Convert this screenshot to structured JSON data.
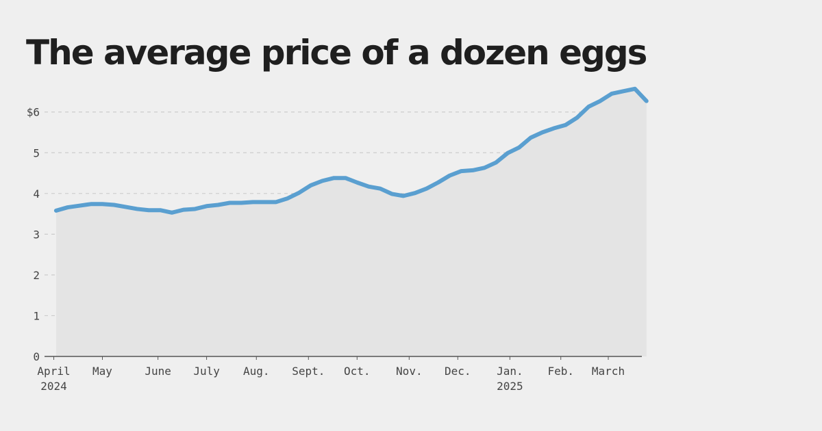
{
  "chart_data": {
    "type": "area",
    "title": "The average price of a dozen eggs",
    "xlabel": "",
    "ylabel": "",
    "ylim": [
      0,
      6.6
    ],
    "yticks": [
      0,
      1,
      2,
      3,
      4,
      5,
      6
    ],
    "ytick_labels": [
      "0",
      "1",
      "2",
      "3",
      "4",
      "5",
      "$6"
    ],
    "xlim": [
      0,
      51.6
    ],
    "xticks": [
      {
        "x": 0.8,
        "line1": "April",
        "line2": "2024"
      },
      {
        "x": 5.0,
        "line1": "May",
        "line2": ""
      },
      {
        "x": 9.8,
        "line1": "June",
        "line2": ""
      },
      {
        "x": 14.0,
        "line1": "July",
        "line2": ""
      },
      {
        "x": 18.3,
        "line1": "Aug.",
        "line2": ""
      },
      {
        "x": 22.8,
        "line1": "Sept.",
        "line2": ""
      },
      {
        "x": 27.0,
        "line1": "Oct.",
        "line2": ""
      },
      {
        "x": 31.5,
        "line1": "Nov.",
        "line2": ""
      },
      {
        "x": 35.7,
        "line1": "Dec.",
        "line2": ""
      },
      {
        "x": 40.2,
        "line1": "Jan.",
        "line2": "2025"
      },
      {
        "x": 44.6,
        "line1": "Feb.",
        "line2": ""
      },
      {
        "x": 48.7,
        "line1": "March",
        "line2": ""
      }
    ],
    "grid": true,
    "colors": {
      "line": "#5a9fd0",
      "area": "#e4e4e4",
      "grid": "#cccccc",
      "axis": "#555555",
      "text": "#444444"
    },
    "series": [
      {
        "x": [
          1,
          2,
          3,
          4,
          5,
          6,
          7,
          8,
          9,
          10,
          11,
          12,
          13,
          14,
          15,
          16,
          17,
          18,
          19,
          20,
          21,
          22,
          23,
          24,
          25,
          26,
          27,
          28,
          29,
          30,
          31,
          32,
          33,
          34,
          35,
          36,
          37,
          38,
          39,
          40,
          41,
          42,
          43,
          44,
          45,
          46,
          47,
          48,
          49,
          50,
          51,
          52
        ],
        "values": [
          3.58,
          3.66,
          3.7,
          3.74,
          3.74,
          3.72,
          3.67,
          3.62,
          3.59,
          3.59,
          3.53,
          3.6,
          3.62,
          3.69,
          3.72,
          3.77,
          3.77,
          3.79,
          3.79,
          3.79,
          3.88,
          4.02,
          4.2,
          4.31,
          4.38,
          4.38,
          4.27,
          4.17,
          4.12,
          3.99,
          3.94,
          4.01,
          4.12,
          4.27,
          4.44,
          4.55,
          4.57,
          4.63,
          4.76,
          4.99,
          5.13,
          5.37,
          5.5,
          5.6,
          5.68,
          5.86,
          6.13,
          6.27,
          6.45,
          6.51,
          6.57,
          6.27
        ]
      }
    ]
  }
}
